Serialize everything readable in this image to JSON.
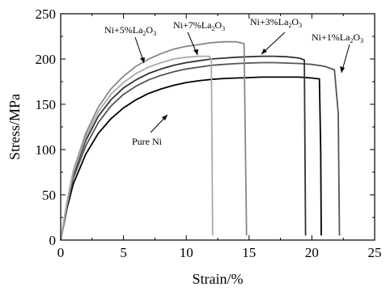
{
  "chart_data": {
    "type": "line",
    "title": "",
    "xlabel": "Strain/%",
    "ylabel": "Stress/MPa",
    "xlim": [
      0,
      25
    ],
    "ylim": [
      0,
      250
    ],
    "xticks": [
      0,
      5,
      10,
      15,
      20,
      25
    ],
    "yticks": [
      0,
      50,
      100,
      150,
      200,
      250
    ],
    "grid": false,
    "legend": "none (curves labeled directly with annotations)",
    "series": [
      {
        "name": "Pure Ni",
        "color": "#000000",
        "x": [
          0,
          0.5,
          1,
          2,
          3,
          4,
          5,
          6,
          7,
          8,
          9,
          10,
          11,
          12,
          13,
          14,
          15,
          16,
          17,
          18,
          19,
          20,
          20.6,
          20.7,
          20.75
        ],
        "y": [
          0,
          35,
          62,
          95,
          118,
          134,
          146,
          155,
          162,
          167,
          171,
          174,
          176,
          177.5,
          178.5,
          179,
          179.5,
          180,
          180,
          180,
          180,
          179,
          178,
          100,
          5
        ]
      },
      {
        "name": "Ni+1%La2O3",
        "color": "#555555",
        "x": [
          0,
          0.5,
          1,
          2,
          3,
          4,
          5,
          6,
          7,
          8,
          9,
          10,
          11,
          12,
          13,
          14,
          15,
          16,
          17,
          18,
          19,
          20,
          21,
          21.8,
          22.1,
          22.2
        ],
        "y": [
          0,
          38,
          68,
          104,
          130,
          148,
          161,
          170,
          177,
          182,
          186,
          189,
          191,
          193,
          194,
          195,
          195.5,
          196,
          196,
          195.5,
          195,
          194,
          192,
          188,
          140,
          5
        ]
      },
      {
        "name": "Ni+3%La2O3",
        "color": "#333333",
        "x": [
          0,
          0.5,
          1,
          2,
          3,
          4,
          5,
          6,
          7,
          8,
          9,
          10,
          11,
          12,
          13,
          14,
          15,
          16,
          17,
          18,
          19,
          19.4,
          19.5
        ],
        "y": [
          0,
          40,
          72,
          110,
          137,
          155,
          168,
          177,
          184,
          189,
          193,
          196,
          198,
          200,
          201,
          202,
          202.5,
          203,
          203,
          202.5,
          201,
          199,
          5
        ]
      },
      {
        "name": "Ni+5%La2O3",
        "color": "#888888",
        "x": [
          0,
          0.5,
          1,
          2,
          3,
          4,
          5,
          6,
          7,
          8,
          9,
          10,
          11,
          12,
          13,
          14,
          14.6,
          14.8
        ],
        "y": [
          0,
          42,
          76,
          118,
          147,
          167,
          181,
          192,
          200,
          206,
          211,
          214,
          216,
          218,
          219,
          219,
          217,
          5
        ]
      },
      {
        "name": "Ni+7%La2O3",
        "color": "#aaaaaa",
        "x": [
          0,
          0.5,
          1,
          2,
          3,
          4,
          5,
          6,
          7,
          8,
          9,
          10,
          11,
          11.8,
          12,
          12.1
        ],
        "y": [
          0,
          40,
          74,
          114,
          142,
          161,
          174,
          184,
          191,
          196,
          200,
          202,
          203,
          203,
          200,
          5
        ]
      }
    ],
    "annotations": [
      {
        "main": "Pure Ni",
        "sub1": "",
        "mid": "",
        "sub2": ""
      },
      {
        "main": "Ni+1%La",
        "sub1": "2",
        "mid": "O",
        "sub2": "3"
      },
      {
        "main": "Ni+3%La",
        "sub1": "2",
        "mid": "O",
        "sub2": "3"
      },
      {
        "main": "Ni+5%La",
        "sub1": "2",
        "mid": "O",
        "sub2": "3"
      },
      {
        "main": "Ni+7%La",
        "sub1": "2",
        "mid": "O",
        "sub2": "3"
      }
    ]
  }
}
